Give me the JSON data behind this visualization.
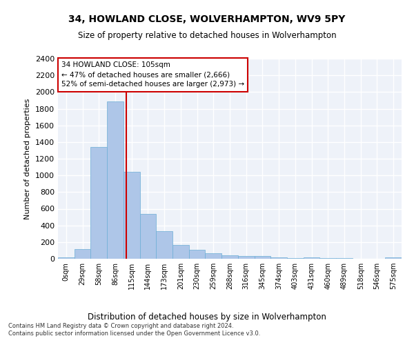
{
  "title_line1": "34, HOWLAND CLOSE, WOLVERHAMPTON, WV9 5PY",
  "title_line2": "Size of property relative to detached houses in Wolverhampton",
  "xlabel": "Distribution of detached houses by size in Wolverhampton",
  "ylabel": "Number of detached properties",
  "bin_labels": [
    "0sqm",
    "29sqm",
    "58sqm",
    "86sqm",
    "115sqm",
    "144sqm",
    "173sqm",
    "201sqm",
    "230sqm",
    "259sqm",
    "288sqm",
    "316sqm",
    "345sqm",
    "374sqm",
    "403sqm",
    "431sqm",
    "460sqm",
    "489sqm",
    "518sqm",
    "546sqm",
    "575sqm"
  ],
  "bar_values": [
    15,
    120,
    1340,
    1890,
    1040,
    540,
    335,
    165,
    110,
    65,
    40,
    30,
    30,
    20,
    5,
    20,
    5,
    5,
    0,
    0,
    15
  ],
  "bar_color": "#aec6e8",
  "bar_edge_color": "#6baed6",
  "ylim": [
    0,
    2400
  ],
  "yticks": [
    0,
    200,
    400,
    600,
    800,
    1000,
    1200,
    1400,
    1600,
    1800,
    2000,
    2200,
    2400
  ],
  "annotation_text_line1": "34 HOWLAND CLOSE: 105sqm",
  "annotation_text_line2": "← 47% of detached houses are smaller (2,666)",
  "annotation_text_line3": "52% of semi-detached houses are larger (2,973) →",
  "annotation_box_color": "#ffffff",
  "annotation_box_edge_color": "#cc0000",
  "line_color": "#cc0000",
  "footer_line1": "Contains HM Land Registry data © Crown copyright and database right 2024.",
  "footer_line2": "Contains public sector information licensed under the Open Government Licence v3.0.",
  "background_color": "#eef2f9",
  "grid_color": "#ffffff"
}
